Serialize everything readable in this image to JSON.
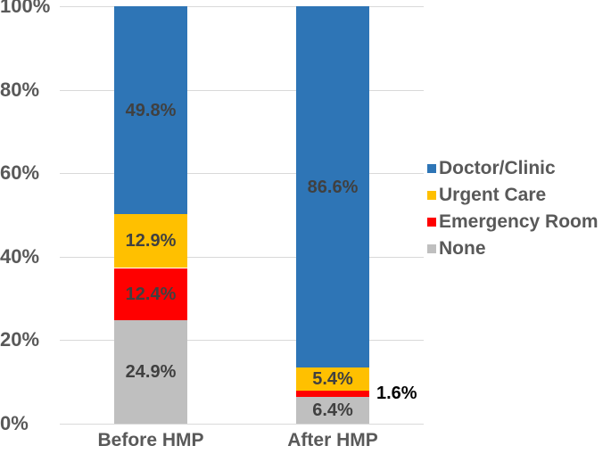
{
  "chart_data": {
    "type": "bar",
    "stacked": true,
    "categories": [
      "Before HMP",
      "After HMP"
    ],
    "series": [
      {
        "name": "Doctor/Clinic",
        "color": "#2E75B6",
        "values": [
          49.8,
          86.6
        ],
        "labels": [
          "49.8%",
          "86.6%"
        ]
      },
      {
        "name": "Urgent Care",
        "color": "#FFC000",
        "values": [
          12.9,
          5.4
        ],
        "labels": [
          "12.9%",
          "5.4%"
        ]
      },
      {
        "name": "Emergency Room",
        "color": "#FF0000",
        "values": [
          12.4,
          1.6
        ],
        "labels": [
          "12.4%",
          "1.6%"
        ]
      },
      {
        "name": "None",
        "color": "#BFBFBF",
        "values": [
          24.9,
          6.4
        ],
        "labels": [
          "24.9%",
          "6.4%"
        ]
      }
    ],
    "stack_order_bottom_to_top": [
      "None",
      "Emergency Room",
      "Urgent Care",
      "Doctor/Clinic"
    ],
    "y_ticks": [
      "0%",
      "20%",
      "40%",
      "60%",
      "80%",
      "100%"
    ],
    "ylim": [
      0,
      100
    ],
    "grid": true,
    "legend_position": "right",
    "data_label_placement": "inside-center, outside-right when segment too small"
  },
  "style": {
    "axis_text_color": "#595959",
    "data_label_color": "#404040",
    "outside_label_color": "#000000",
    "gridline_color": "#D9D9D9",
    "background": "#FFFFFF"
  }
}
